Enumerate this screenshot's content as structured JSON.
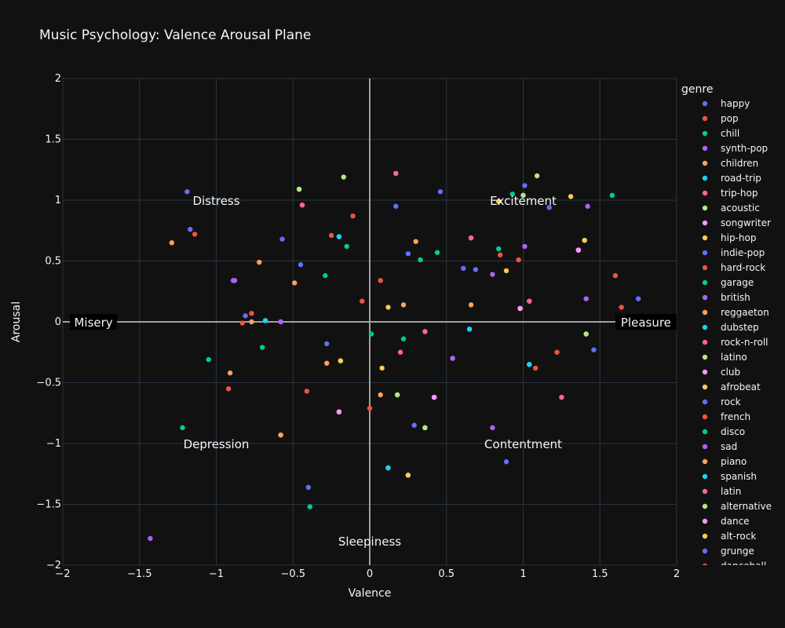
{
  "chart_data": {
    "type": "scatter",
    "title": "Music Psychology: Valence Arousal Plane",
    "xlabel": "Valence",
    "ylabel": "Arousal",
    "xlim": [
      -2,
      2
    ],
    "ylim": [
      -2,
      2
    ],
    "xticks": [
      -2,
      -1.5,
      -1,
      -0.5,
      0,
      0.5,
      1,
      1.5,
      2
    ],
    "yticks": [
      -2,
      -1.5,
      -1,
      -0.5,
      0,
      0.5,
      1,
      1.5,
      2
    ],
    "xtick_labels": [
      "−2",
      "−1.5",
      "−1",
      "−0.5",
      "0",
      "0.5",
      "1",
      "1.5",
      "2"
    ],
    "ytick_labels": [
      "−2",
      "−1.5",
      "−1",
      "−0.5",
      "0",
      "0.5",
      "1",
      "1.5",
      "2"
    ],
    "grid": true,
    "legend": {
      "title": "genre",
      "placement": "right"
    },
    "colors": {
      "background": "#111111",
      "grid": "#283442",
      "axis_line": "#a0a0a0",
      "text": "#f2f5fa"
    },
    "annotations": [
      {
        "text": "Distress",
        "x": -1,
        "y": 1,
        "boxed": false
      },
      {
        "text": "Excitement",
        "x": 1,
        "y": 1,
        "boxed": false
      },
      {
        "text": "Depression",
        "x": -1,
        "y": -1,
        "boxed": false
      },
      {
        "text": "Contentment",
        "x": 1,
        "y": -1,
        "boxed": false
      },
      {
        "text": "Sleepiness",
        "x": 0,
        "y": -1.8,
        "boxed": false
      },
      {
        "text": "Misery",
        "x": -1.8,
        "y": 0,
        "boxed": true
      },
      {
        "text": "Pleasure",
        "x": 1.8,
        "y": 0,
        "boxed": true
      }
    ],
    "series": [
      {
        "name": "happy",
        "color": "#636efa",
        "points": [
          [
            0.46,
            1.07
          ],
          [
            1.01,
            1.12
          ],
          [
            0.61,
            0.44
          ],
          [
            -1.19,
            1.07
          ]
        ]
      },
      {
        "name": "pop",
        "color": "#EF553B",
        "points": [
          [
            0.97,
            0.51
          ],
          [
            -0.41,
            -0.57
          ],
          [
            -0.77,
            0.07
          ],
          [
            1.6,
            0.38
          ]
        ]
      },
      {
        "name": "chill",
        "color": "#00cc96",
        "points": [
          [
            1.58,
            1.04
          ],
          [
            0.84,
            0.6
          ],
          [
            -0.7,
            -0.21
          ],
          [
            0.33,
            0.51
          ]
        ]
      },
      {
        "name": "synth-pop",
        "color": "#ab63fa",
        "points": [
          [
            0.8,
            0.39
          ],
          [
            -0.58,
            0.0
          ],
          [
            0.54,
            -0.3
          ],
          [
            0.8,
            -0.87
          ]
        ]
      },
      {
        "name": "children",
        "color": "#FFA15A",
        "points": [
          [
            -0.72,
            0.49
          ],
          [
            -0.91,
            -0.42
          ],
          [
            0.22,
            0.14
          ],
          [
            -0.28,
            -0.34
          ]
        ]
      },
      {
        "name": "road-trip",
        "color": "#19d3f3",
        "points": [
          [
            -0.2,
            0.7
          ],
          [
            1.04,
            -0.35
          ],
          [
            0.12,
            -1.2
          ],
          [
            0.65,
            -0.06
          ]
        ]
      },
      {
        "name": "trip-hop",
        "color": "#FF6692",
        "points": [
          [
            0.17,
            1.22
          ],
          [
            -0.44,
            0.96
          ],
          [
            1.04,
            0.17
          ],
          [
            0.36,
            -0.08
          ]
        ]
      },
      {
        "name": "acoustic",
        "color": "#B6E880",
        "points": [
          [
            -0.46,
            1.09
          ],
          [
            1.09,
            1.2
          ],
          [
            1.41,
            -0.1
          ],
          [
            0.18,
            -0.6
          ]
        ]
      },
      {
        "name": "songwriter",
        "color": "#FF97FF",
        "points": [
          [
            1.36,
            0.59
          ],
          [
            0.98,
            0.11
          ],
          [
            0.42,
            -0.62
          ],
          [
            -0.2,
            -0.74
          ]
        ]
      },
      {
        "name": "hip-hop",
        "color": "#FECB52",
        "points": [
          [
            0.84,
            0.99
          ],
          [
            1.4,
            0.67
          ],
          [
            -0.19,
            -0.32
          ],
          [
            0.25,
            -1.26
          ]
        ]
      },
      {
        "name": "indie-pop",
        "color": "#636efa",
        "points": [
          [
            -0.57,
            0.68
          ],
          [
            0.25,
            0.56
          ],
          [
            -0.81,
            0.05
          ],
          [
            -0.28,
            -0.18
          ]
        ]
      },
      {
        "name": "hard-rock",
        "color": "#EF553B",
        "points": [
          [
            -0.11,
            0.87
          ],
          [
            0.85,
            0.55
          ],
          [
            -0.05,
            0.17
          ],
          [
            1.08,
            -0.38
          ]
        ]
      },
      {
        "name": "garage",
        "color": "#00cc96",
        "points": [
          [
            -0.15,
            0.62
          ],
          [
            -0.29,
            0.38
          ],
          [
            0.44,
            0.57
          ],
          [
            0.22,
            -0.14
          ]
        ]
      },
      {
        "name": "british",
        "color": "#ab63fa",
        "points": [
          [
            -0.89,
            0.34
          ],
          [
            1.01,
            0.62
          ],
          [
            1.41,
            0.19
          ],
          [
            -1.43,
            -1.78
          ]
        ]
      },
      {
        "name": "reggaeton",
        "color": "#FFA15A",
        "points": [
          [
            -1.29,
            0.65
          ],
          [
            0.3,
            0.66
          ],
          [
            -0.49,
            0.32
          ],
          [
            -0.58,
            -0.93
          ]
        ]
      },
      {
        "name": "dubstep",
        "color": "#19d3f3",
        "points": [
          [
            -0.68,
            0.01
          ],
          [
            1.04,
            -0.35
          ],
          [
            0.12,
            -1.2
          ],
          [
            0.65,
            -0.06
          ]
        ]
      },
      {
        "name": "rock-n-roll",
        "color": "#FF6692",
        "points": [
          [
            0.66,
            0.69
          ],
          [
            0.2,
            -0.25
          ],
          [
            1.25,
            -0.62
          ],
          [
            -0.44,
            0.96
          ]
        ]
      },
      {
        "name": "latino",
        "color": "#B6E880",
        "points": [
          [
            -0.17,
            1.19
          ],
          [
            1.0,
            1.04
          ],
          [
            0.36,
            -0.87
          ],
          [
            0.18,
            -0.6
          ]
        ]
      },
      {
        "name": "club",
        "color": "#FF97FF",
        "points": [
          [
            1.36,
            0.59
          ],
          [
            0.98,
            0.11
          ],
          [
            0.42,
            -0.62
          ],
          [
            -0.2,
            -0.74
          ]
        ]
      },
      {
        "name": "afrobeat",
        "color": "#FECB52",
        "points": [
          [
            1.31,
            1.03
          ],
          [
            0.12,
            0.12
          ],
          [
            0.89,
            0.42
          ],
          [
            0.08,
            -0.38
          ]
        ]
      },
      {
        "name": "rock",
        "color": "#636efa",
        "points": [
          [
            0.17,
            0.95
          ],
          [
            0.69,
            0.43
          ],
          [
            1.46,
            -0.23
          ],
          [
            0.29,
            -0.85
          ]
        ]
      },
      {
        "name": "french",
        "color": "#EF553B",
        "points": [
          [
            -1.14,
            0.72
          ],
          [
            -0.25,
            0.71
          ],
          [
            0.07,
            0.34
          ],
          [
            -0.92,
            -0.55
          ]
        ]
      },
      {
        "name": "disco",
        "color": "#00cc96",
        "points": [
          [
            0.93,
            1.05
          ],
          [
            0.01,
            -0.1
          ],
          [
            -1.05,
            -0.31
          ],
          [
            -1.22,
            -0.87
          ]
        ]
      },
      {
        "name": "sad",
        "color": "#ab63fa",
        "points": [
          [
            1.42,
            0.95
          ],
          [
            -0.88,
            0.34
          ],
          [
            -0.58,
            0.0
          ],
          [
            0.54,
            -0.3
          ]
        ]
      },
      {
        "name": "piano",
        "color": "#FFA15A",
        "points": [
          [
            0.66,
            0.14
          ],
          [
            -0.77,
            0.0
          ],
          [
            0.07,
            -0.6
          ],
          [
            -0.58,
            -0.93
          ]
        ]
      },
      {
        "name": "spanish",
        "color": "#19d3f3",
        "points": [
          [
            -0.2,
            0.7
          ],
          [
            -0.68,
            0.01
          ],
          [
            1.04,
            -0.35
          ],
          [
            0.12,
            -1.2
          ]
        ]
      },
      {
        "name": "latin",
        "color": "#FF6692",
        "points": [
          [
            0.17,
            1.22
          ],
          [
            0.66,
            0.69
          ],
          [
            1.04,
            0.17
          ],
          [
            0.36,
            -0.08
          ]
        ]
      },
      {
        "name": "alternative",
        "color": "#B6E880",
        "points": [
          [
            1.0,
            1.04
          ],
          [
            1.41,
            -0.1
          ],
          [
            0.36,
            -0.87
          ],
          [
            -0.46,
            1.09
          ]
        ]
      },
      {
        "name": "dance",
        "color": "#FF97FF",
        "points": [
          [
            1.36,
            0.59
          ],
          [
            0.98,
            0.11
          ],
          [
            0.42,
            -0.62
          ],
          [
            -0.2,
            -0.74
          ]
        ]
      },
      {
        "name": "alt-rock",
        "color": "#FECB52",
        "points": [
          [
            0.84,
            0.99
          ],
          [
            1.4,
            0.67
          ],
          [
            -0.19,
            -0.32
          ],
          [
            0.25,
            -1.26
          ]
        ]
      },
      {
        "name": "grunge",
        "color": "#636efa",
        "points": [
          [
            1.17,
            0.94
          ],
          [
            1.75,
            0.19
          ],
          [
            0.89,
            -1.15
          ],
          [
            -0.4,
            -1.36
          ],
          [
            -1.17,
            0.76
          ],
          [
            -0.45,
            0.47
          ]
        ]
      },
      {
        "name": "dancehall",
        "color": "#EF553B",
        "points": [
          [
            1.64,
            0.12
          ],
          [
            1.22,
            -0.25
          ],
          [
            -0.83,
            -0.01
          ],
          [
            0.0,
            -0.71
          ]
        ]
      },
      {
        "name": "",
        "color": "#00cc96",
        "points": [
          [
            -0.39,
            -1.52
          ]
        ]
      }
    ]
  }
}
